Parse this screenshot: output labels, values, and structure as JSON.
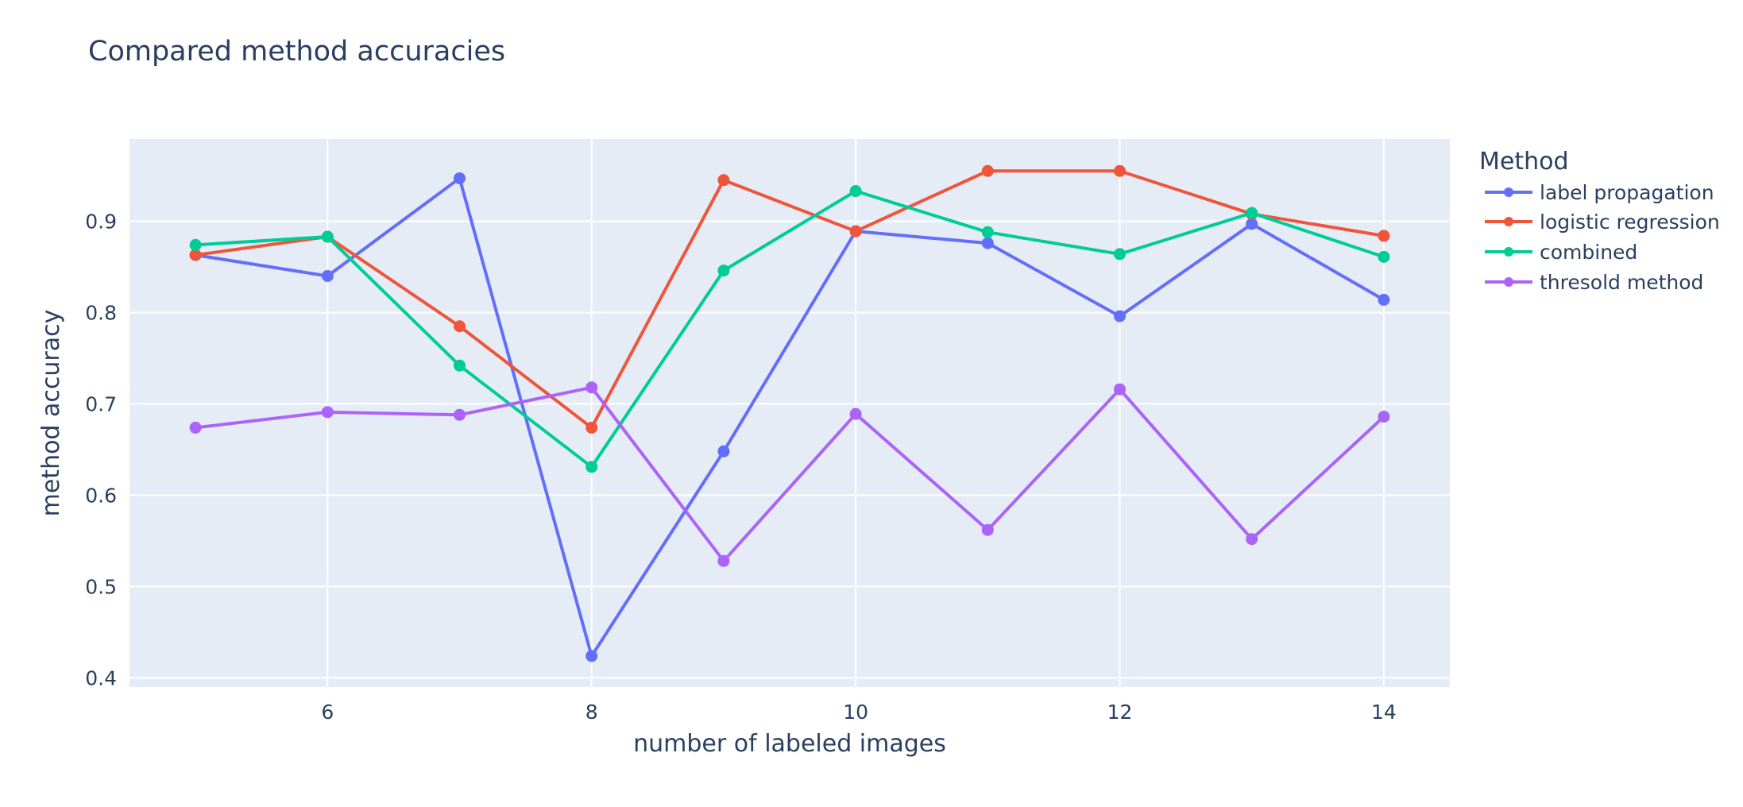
{
  "chart_data": {
    "type": "line",
    "title": "Compared method accuracies",
    "xlabel": "number of labeled images",
    "ylabel": "method accuracy",
    "x": [
      5,
      6,
      7,
      8,
      9,
      10,
      11,
      12,
      13,
      14
    ],
    "xlim": [
      4.5,
      14.5
    ],
    "ylim": [
      0.39,
      0.99
    ],
    "xticks": [
      6,
      8,
      10,
      12,
      14
    ],
    "yticks": [
      0.4,
      0.5,
      0.6,
      0.7,
      0.8,
      0.9
    ],
    "grid": true,
    "legend": {
      "title": "Method",
      "placement": "top-right outside"
    },
    "series": [
      {
        "name": "label propagation",
        "color": "#636efa",
        "values": [
          0.863,
          0.84,
          0.947,
          0.424,
          0.648,
          0.889,
          0.876,
          0.796,
          0.897,
          0.814
        ]
      },
      {
        "name": "logistic regression",
        "color": "#ef553b",
        "values": [
          0.863,
          0.883,
          0.785,
          0.674,
          0.945,
          0.889,
          0.955,
          0.955,
          0.908,
          0.884
        ]
      },
      {
        "name": "combined",
        "color": "#00cc96",
        "values": [
          0.874,
          0.883,
          0.742,
          0.631,
          0.846,
          0.933,
          0.888,
          0.864,
          0.909,
          0.861
        ]
      },
      {
        "name": "thresold method",
        "color": "#ab63fa",
        "values": [
          0.674,
          0.691,
          0.688,
          0.718,
          0.528,
          0.689,
          0.562,
          0.716,
          0.552,
          0.686
        ]
      }
    ]
  }
}
